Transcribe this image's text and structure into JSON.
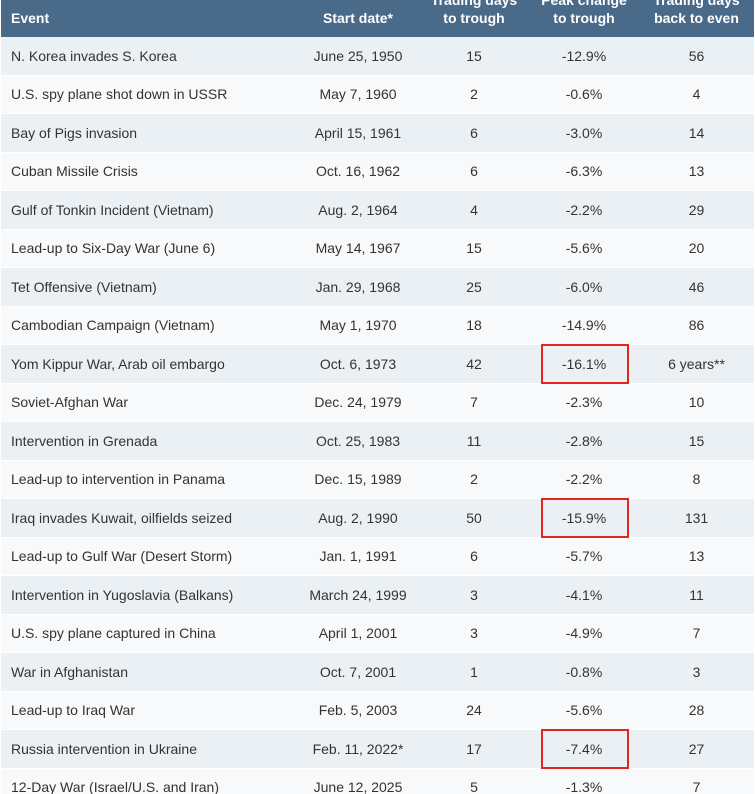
{
  "table": {
    "headers": [
      {
        "key": "event",
        "line1": "",
        "line2": "Event"
      },
      {
        "key": "date",
        "line1": "",
        "line2": "Start date*"
      },
      {
        "key": "days",
        "line1": "Trading days",
        "line2": "to trough"
      },
      {
        "key": "pct",
        "line1": "Peak change",
        "line2": "to trough"
      },
      {
        "key": "even",
        "line1": "Trading days",
        "line2": "back to even"
      }
    ],
    "highlight_color": "#e0261d",
    "header_color": "#4a6a8a",
    "rows": [
      {
        "event": "N. Korea invades S. Korea",
        "date": "June 25, 1950",
        "days": "15",
        "pct": "-12.9%",
        "even": "56",
        "highlight": false
      },
      {
        "event": "U.S. spy plane shot down in USSR",
        "date": "May 7, 1960",
        "days": "2",
        "pct": "-0.6%",
        "even": "4",
        "highlight": false
      },
      {
        "event": "Bay of Pigs invasion",
        "date": "April 15, 1961",
        "days": "6",
        "pct": "-3.0%",
        "even": "14",
        "highlight": false
      },
      {
        "event": "Cuban Missile Crisis",
        "date": "Oct. 16, 1962",
        "days": "6",
        "pct": "-6.3%",
        "even": "13",
        "highlight": false
      },
      {
        "event": "Gulf of Tonkin Incident (Vietnam)",
        "date": "Aug. 2, 1964",
        "days": "4",
        "pct": "-2.2%",
        "even": "29",
        "highlight": false
      },
      {
        "event": "Lead-up to Six-Day War (June 6)",
        "date": "May 14, 1967",
        "days": "15",
        "pct": "-5.6%",
        "even": "20",
        "highlight": false
      },
      {
        "event": "Tet Offensive (Vietnam)",
        "date": "Jan. 29, 1968",
        "days": "25",
        "pct": "-6.0%",
        "even": "46",
        "highlight": false
      },
      {
        "event": "Cambodian Campaign (Vietnam)",
        "date": "May 1, 1970",
        "days": "18",
        "pct": "-14.9%",
        "even": "86",
        "highlight": false
      },
      {
        "event": "Yom Kippur War, Arab oil embargo",
        "date": "Oct. 6, 1973",
        "days": "42",
        "pct": "-16.1%",
        "even": "6 years**",
        "highlight": true
      },
      {
        "event": "Soviet-Afghan War",
        "date": "Dec. 24, 1979",
        "days": "7",
        "pct": "-2.3%",
        "even": "10",
        "highlight": false
      },
      {
        "event": "Intervention in Grenada",
        "date": "Oct. 25, 1983",
        "days": "11",
        "pct": "-2.8%",
        "even": "15",
        "highlight": false
      },
      {
        "event": "Lead-up to intervention in Panama",
        "date": "Dec. 15, 1989",
        "days": "2",
        "pct": "-2.2%",
        "even": "8",
        "highlight": false
      },
      {
        "event": "Iraq invades Kuwait, oilfields seized",
        "date": "Aug. 2, 1990",
        "days": "50",
        "pct": "-15.9%",
        "even": "131",
        "highlight": true
      },
      {
        "event": "Lead-up to Gulf War (Desert Storm)",
        "date": "Jan. 1, 1991",
        "days": "6",
        "pct": "-5.7%",
        "even": "13",
        "highlight": false
      },
      {
        "event": "Intervention in Yugoslavia (Balkans)",
        "date": "March 24, 1999",
        "days": "3",
        "pct": "-4.1%",
        "even": "11",
        "highlight": false
      },
      {
        "event": "U.S. spy plane captured in China",
        "date": "April 1, 2001",
        "days": "3",
        "pct": "-4.9%",
        "even": "7",
        "highlight": false
      },
      {
        "event": "War in Afghanistan",
        "date": "Oct. 7, 2001",
        "days": "1",
        "pct": "-0.8%",
        "even": "3",
        "highlight": false
      },
      {
        "event": "Lead-up to Iraq War",
        "date": "Feb. 5, 2003",
        "days": "24",
        "pct": "-5.6%",
        "even": "28",
        "highlight": false
      },
      {
        "event": "Russia intervention in Ukraine",
        "date": "Feb. 11, 2022*",
        "days": "17",
        "pct": "-7.4%",
        "even": "27",
        "highlight": true
      },
      {
        "event": "12-Day War (Israel/U.S. and Iran)",
        "date": "June 12, 2025",
        "days": "5",
        "pct": "-1.3%",
        "even": "7",
        "highlight": false
      }
    ]
  }
}
